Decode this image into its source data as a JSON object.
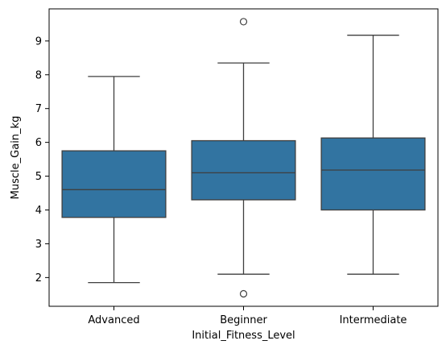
{
  "chart_data": {
    "type": "box",
    "title": "",
    "xlabel": "Initial_Fitness_Level",
    "ylabel": "Muscle_Gain_kg",
    "categories": [
      "Advanced",
      "Beginner",
      "Intermediate"
    ],
    "ylim": [
      1.15,
      9.95
    ],
    "yticks": [
      2,
      3,
      4,
      5,
      6,
      7,
      8,
      9
    ],
    "grid": false,
    "legend": "none",
    "box_color": "#3274a1",
    "line_color": "#3f3f3f",
    "boxes": [
      {
        "category": "Advanced",
        "whisker_low": 1.85,
        "q1": 3.78,
        "median": 4.6,
        "q3": 5.75,
        "whisker_high": 7.95,
        "outliers": []
      },
      {
        "category": "Beginner",
        "whisker_low": 2.1,
        "q1": 4.3,
        "median": 5.1,
        "q3": 6.05,
        "whisker_high": 8.35,
        "outliers": [
          9.57,
          1.52
        ]
      },
      {
        "category": "Intermediate",
        "whisker_low": 2.1,
        "q1": 4.0,
        "median": 5.18,
        "q3": 6.13,
        "whisker_high": 9.17,
        "outliers": []
      }
    ]
  }
}
